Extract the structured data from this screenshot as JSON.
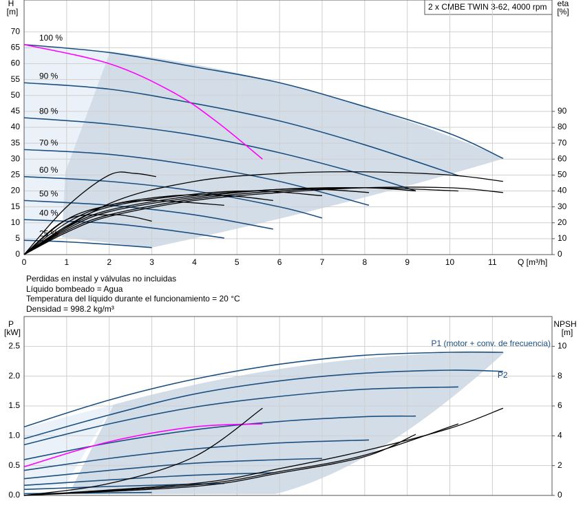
{
  "title": "2 x CMBE TWIN 3-62, 4000 rpm",
  "notes": [
    "Perdidas en instal y válvulas no incluidas",
    "Líquido bombeado = Agua",
    "Temperatura del líquido durante el funcionamiento = 20 °C",
    "Densidad = 998.2 kg/m³"
  ],
  "chart_data": [
    {
      "type": "line",
      "xlabel": "Q [m³/h]",
      "ylabel": [
        "H",
        "[m]"
      ],
      "y2label": [
        "eta",
        "[%]"
      ],
      "xlim": [
        0,
        12.4
      ],
      "xticks": [
        0,
        1,
        2,
        3,
        4,
        5,
        6,
        7,
        8,
        9,
        10,
        11
      ],
      "ylim": [
        0,
        80
      ],
      "yticks": [
        0,
        5,
        10,
        15,
        20,
        25,
        30,
        35,
        40,
        45,
        50,
        55,
        60,
        65,
        70
      ],
      "y2lim": [
        0,
        160
      ],
      "y2ticks": [
        0,
        10,
        20,
        30,
        40,
        50,
        60,
        70,
        80,
        90
      ],
      "grid": true,
      "series": [
        {
          "name": "100 %",
          "color": "#1a4f80",
          "x": [
            0,
            2,
            4,
            6,
            8,
            10,
            11.25
          ],
          "values": [
            66,
            63.5,
            59,
            54,
            46.5,
            38,
            30.2
          ]
        },
        {
          "name": "90 %",
          "color": "#1a4f80",
          "x": [
            0,
            2,
            4,
            6,
            8,
            10.2
          ],
          "values": [
            54,
            52,
            47.5,
            42,
            34.5,
            24.8
          ]
        },
        {
          "name": "80 %",
          "color": "#1a4f80",
          "x": [
            0,
            2,
            4,
            6,
            8,
            9.2
          ],
          "values": [
            43,
            41,
            37.5,
            32,
            25,
            20
          ]
        },
        {
          "name": "70 %",
          "color": "#1a4f80",
          "x": [
            0,
            2,
            4,
            6,
            8.1
          ],
          "values": [
            33,
            31.5,
            28,
            23,
            15.5
          ]
        },
        {
          "name": "60 %",
          "color": "#1a4f80",
          "x": [
            0,
            2,
            4,
            6,
            7
          ],
          "values": [
            24.5,
            23,
            20,
            15,
            11.5
          ]
        },
        {
          "name": "50 %",
          "color": "#1a4f80",
          "x": [
            0,
            2,
            4,
            5.85
          ],
          "values": [
            17,
            15.5,
            12.5,
            8
          ]
        },
        {
          "name": "40 %",
          "color": "#1a4f80",
          "x": [
            0,
            2,
            3.5,
            4.7
          ],
          "values": [
            11,
            9.8,
            7.5,
            5.2
          ]
        },
        {
          "name": "25 %",
          "color": "#1a4f80",
          "x": [
            0,
            1,
            2,
            3
          ],
          "values": [
            4.5,
            4,
            3.2,
            2.2
          ]
        },
        {
          "color": "#ff00ff",
          "x": [
            0,
            2,
            3.5,
            4.5,
            5.6
          ],
          "values": [
            66,
            60,
            51,
            42,
            30
          ]
        },
        {
          "color": "#000000",
          "axis": "y2",
          "x": [
            0,
            1,
            2,
            4,
            6,
            8,
            10,
            11.25
          ],
          "values": [
            0,
            14,
            24,
            34,
            39,
            42,
            42,
            39
          ]
        },
        {
          "color": "#000000",
          "axis": "y2",
          "x": [
            0,
            1,
            2,
            4,
            6,
            8,
            10.2
          ],
          "values": [
            0,
            15,
            25,
            35,
            40,
            42,
            40
          ]
        },
        {
          "color": "#000000",
          "axis": "y2",
          "x": [
            0,
            1,
            2,
            4,
            6,
            8,
            9.2
          ],
          "values": [
            0,
            16,
            27,
            36,
            41,
            42,
            40
          ]
        },
        {
          "color": "#000000",
          "axis": "y2",
          "x": [
            0,
            1,
            2,
            4,
            6,
            7,
            8.1
          ],
          "values": [
            0,
            17,
            28,
            37,
            41,
            41,
            39
          ]
        },
        {
          "color": "#000000",
          "axis": "y2",
          "x": [
            0,
            1,
            2,
            4,
            5.5,
            7
          ],
          "values": [
            0,
            18,
            30,
            38,
            40,
            37
          ]
        },
        {
          "color": "#000000",
          "axis": "y2",
          "x": [
            0,
            1,
            2,
            3.5,
            4.8,
            5.85
          ],
          "values": [
            0,
            20,
            31,
            37,
            37,
            34
          ]
        },
        {
          "color": "#000000",
          "axis": "y2",
          "x": [
            0,
            1,
            2,
            3,
            4.7
          ],
          "values": [
            0,
            22,
            31,
            34,
            31
          ]
        },
        {
          "color": "#000000",
          "axis": "y2",
          "x": [
            0,
            1,
            2,
            2.5,
            3
          ],
          "values": [
            0,
            22,
            25,
            24,
            21
          ]
        },
        {
          "color": "#000000",
          "axis": "y2",
          "x": [
            0,
            1,
            2,
            2.6,
            3.1
          ],
          "values": [
            0,
            30,
            50,
            51,
            49
          ]
        },
        {
          "color": "#000000",
          "axis": "y2",
          "x": [
            0,
            2,
            4,
            6,
            8,
            10,
            11.25
          ],
          "values": [
            0,
            32,
            46,
            51,
            52,
            50,
            46
          ]
        }
      ]
    },
    {
      "type": "line",
      "ylabel": [
        "P",
        "[kW]"
      ],
      "y2label": [
        "NPSH",
        "[m]"
      ],
      "xlim": [
        0,
        12.4
      ],
      "xticks": [
        0,
        1,
        2,
        3,
        4,
        5,
        6,
        7,
        8,
        9,
        10,
        11
      ],
      "ylim": [
        0,
        3.0
      ],
      "yticks": [
        {
          "value": 0,
          "label": "0.0"
        },
        0.5,
        {
          "value": 1,
          "label": "1.0"
        },
        1.5,
        {
          "value": 2,
          "label": "2.0"
        },
        2.5
      ],
      "y2lim": [
        0,
        12
      ],
      "y2ticks": [
        0,
        2,
        4,
        6,
        8,
        10
      ],
      "grid": true,
      "series": [
        {
          "name": "P1 (motor + conv. de frecuencia)",
          "color": "#1a4f80",
          "x": [
            0,
            2,
            4,
            6,
            8,
            10,
            11.25
          ],
          "values": [
            1.15,
            1.6,
            1.95,
            2.2,
            2.35,
            2.4,
            2.4
          ]
        },
        {
          "name": "P2",
          "color": "#1a4f80",
          "x": [
            0,
            2,
            4,
            6,
            8,
            10,
            11.25
          ],
          "values": [
            0.95,
            1.35,
            1.7,
            1.92,
            2.05,
            2.1,
            2.08
          ]
        },
        {
          "color": "#1a4f80",
          "x": [
            0,
            2,
            4,
            6,
            8,
            10.2
          ],
          "values": [
            0.85,
            1.2,
            1.48,
            1.66,
            1.78,
            1.82
          ]
        },
        {
          "color": "#1a4f80",
          "x": [
            0,
            2,
            4,
            6,
            8,
            9.2
          ],
          "values": [
            0.6,
            0.88,
            1.1,
            1.24,
            1.32,
            1.33
          ]
        },
        {
          "color": "#1a4f80",
          "x": [
            0,
            2,
            4,
            6,
            8.1
          ],
          "values": [
            0.42,
            0.62,
            0.78,
            0.88,
            0.93
          ]
        },
        {
          "color": "#1a4f80",
          "x": [
            0,
            2,
            4,
            6,
            7
          ],
          "values": [
            0.28,
            0.42,
            0.54,
            0.6,
            0.62
          ]
        },
        {
          "color": "#1a4f80",
          "x": [
            0,
            2,
            4,
            5.85
          ],
          "values": [
            0.17,
            0.26,
            0.34,
            0.38
          ]
        },
        {
          "color": "#1a4f80",
          "x": [
            0,
            2,
            3.5,
            4.7
          ],
          "values": [
            0.1,
            0.15,
            0.18,
            0.2
          ]
        },
        {
          "color": "#1a4f80",
          "x": [
            0,
            1.5,
            3
          ],
          "values": [
            0.03,
            0.04,
            0.05
          ]
        },
        {
          "color": "#ff00ff",
          "x": [
            0,
            2,
            4,
            5.6
          ],
          "values": [
            0.48,
            0.9,
            1.15,
            1.2
          ]
        },
        {
          "color": "#000000",
          "axis": "y2",
          "x": [
            0,
            2,
            4,
            5.6
          ],
          "values": [
            0,
            0.8,
            2.6,
            5.85
          ]
        },
        {
          "color": "#000000",
          "axis": "y2",
          "x": [
            0,
            4,
            6,
            8,
            10,
            11.25
          ],
          "values": [
            0,
            0.8,
            1.8,
            3,
            4.5,
            5.85
          ]
        },
        {
          "color": "#000000",
          "axis": "y2",
          "x": [
            0,
            4,
            6,
            8,
            10.2
          ],
          "values": [
            0,
            0.7,
            1.6,
            2.7,
            4.8
          ]
        },
        {
          "color": "#000000",
          "axis": "y2",
          "x": [
            0,
            4,
            6,
            8,
            9.2
          ],
          "values": [
            0,
            0.6,
            1.5,
            2.6,
            4.1
          ]
        }
      ]
    }
  ]
}
